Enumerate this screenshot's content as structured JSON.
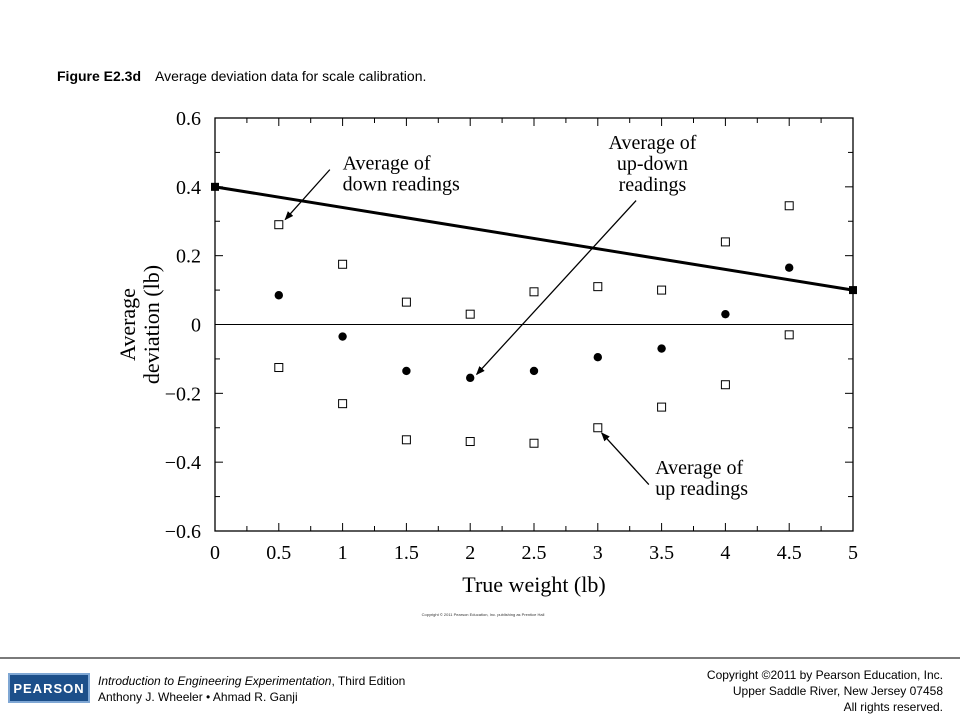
{
  "figure": {
    "label": "Figure E2.3d",
    "text": "Average deviation data for scale calibration."
  },
  "chart_data": {
    "type": "scatter",
    "xlabel": "True weight (lb)",
    "ylabel": [
      "Average",
      "deviation (lb)"
    ],
    "xlim": [
      0,
      5
    ],
    "ylim": [
      -0.6,
      0.6
    ],
    "x_ticks": [
      "0",
      "0.5",
      "1",
      "1.5",
      "2",
      "2.5",
      "3",
      "3.5",
      "4",
      "4.5",
      "5"
    ],
    "y_ticks": [
      "0.6",
      "0.4",
      "0.2",
      "0",
      "−0.2",
      "−0.4",
      "−0.6"
    ],
    "grid": false,
    "series": [
      {
        "kind": "down",
        "marker": "open-square",
        "x": [
          0.5,
          1,
          1.5,
          2,
          2.5,
          3,
          3.5,
          4,
          4.5
        ],
        "y": [
          0.29,
          0.175,
          0.065,
          0.03,
          0.095,
          0.11,
          0.1,
          0.24,
          0.345
        ]
      },
      {
        "kind": "updown",
        "marker": "filled-circle",
        "x": [
          0.5,
          1,
          1.5,
          2,
          2.5,
          3,
          3.5,
          4,
          4.5
        ],
        "y": [
          0.085,
          -0.035,
          -0.135,
          -0.155,
          -0.135,
          -0.095,
          -0.07,
          0.03,
          0.165
        ]
      },
      {
        "kind": "up",
        "marker": "open-square",
        "x": [
          0.5,
          1,
          1.5,
          2,
          2.5,
          3,
          3.5,
          4,
          4.5
        ],
        "y": [
          -0.125,
          -0.23,
          -0.335,
          -0.34,
          -0.345,
          -0.3,
          -0.24,
          -0.175,
          -0.03
        ]
      },
      {
        "kind": "fit",
        "marker": "line-with-filled-square-ends",
        "x": [
          0,
          5
        ],
        "y": [
          0.4,
          0.1
        ]
      }
    ],
    "annotations": [
      {
        "lines": [
          "Average of",
          "down readings"
        ],
        "text_at": [
          1.0,
          0.45
        ],
        "arrow_from": [
          0.9,
          0.45
        ],
        "arrow_to": [
          0.55,
          0.305
        ]
      },
      {
        "lines": [
          "Average of",
          "up-down",
          "readings"
        ],
        "text_at": [
          3.35,
          0.51
        ],
        "arrow_from": [
          3.3,
          0.36
        ],
        "arrow_to": [
          2.05,
          -0.145
        ]
      },
      {
        "lines": [
          "Average of",
          "up readings"
        ],
        "text_at": [
          3.45,
          -0.435
        ],
        "arrow_from": [
          3.4,
          -0.465
        ],
        "arrow_to": [
          3.03,
          -0.315
        ]
      }
    ]
  },
  "small_copyright": "Copyright © 2011 Pearson Education, Inc. publishing as Prentice Hall",
  "footer": {
    "logo": "PEARSON",
    "book_title": "Introduction to Engineering Experimentation",
    "edition": ", Third Edition",
    "authors": "Anthony J. Wheeler • Ahmad R. Ganji",
    "copyright_lines": [
      "Copyright ©2011 by Pearson Education, Inc.",
      "Upper Saddle River, New Jersey 07458",
      "All rights reserved."
    ]
  }
}
